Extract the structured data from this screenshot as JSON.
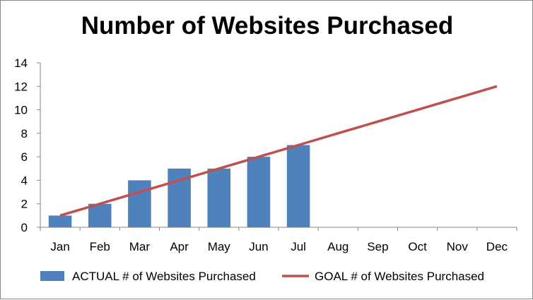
{
  "chart_data": {
    "type": "bar",
    "title": "Number of Websites Purchased",
    "xlabel": "",
    "ylabel": "",
    "categories": [
      "Jan",
      "Feb",
      "Mar",
      "Apr",
      "May",
      "Jun",
      "Jul",
      "Aug",
      "Sep",
      "Oct",
      "Nov",
      "Dec"
    ],
    "ylim": [
      0,
      14
    ],
    "yticks": [
      0,
      2,
      4,
      6,
      8,
      10,
      12,
      14
    ],
    "grid": false,
    "legend_position": "bottom",
    "series": [
      {
        "name": "ACTUAL # of Websites Purchased",
        "type": "bar",
        "color": "#4F81BD",
        "values": [
          1,
          2,
          4,
          5,
          5,
          6,
          7,
          null,
          null,
          null,
          null,
          null
        ]
      },
      {
        "name": "GOAL # of Websites Purchased",
        "type": "line",
        "color": "#C0504D",
        "values": [
          1,
          2,
          3,
          4,
          5,
          6,
          7,
          8,
          9,
          10,
          11,
          12
        ]
      }
    ]
  }
}
